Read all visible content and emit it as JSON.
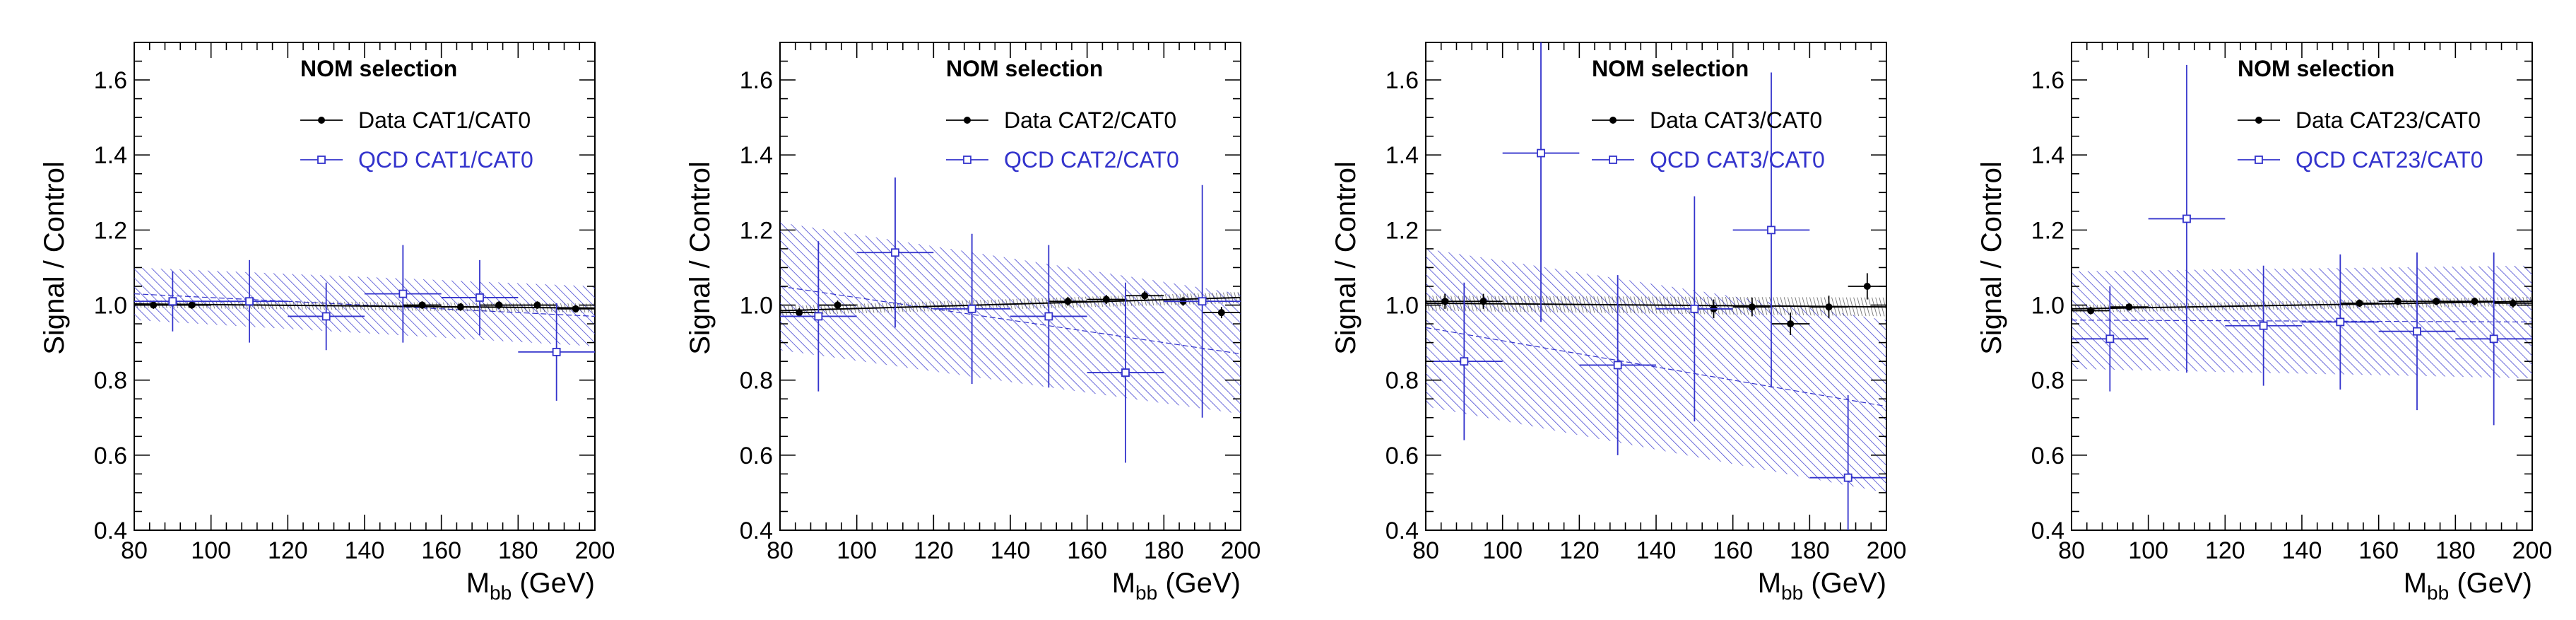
{
  "chart_data": [
    {
      "type": "scatter",
      "title": "NOM selection",
      "ylabel": "Signal / Control",
      "xlabel": "M",
      "xlabel_sub": "bb",
      "xlabel_unit": "(GeV)",
      "xlim": [
        80,
        200
      ],
      "ylim": [
        0.4,
        1.7
      ],
      "xticks": [
        "80",
        "100",
        "120",
        "140",
        "160",
        "180",
        "200"
      ],
      "yticks": [
        "0.4",
        "0.6",
        "0.8",
        "1.0",
        "1.2",
        "1.4",
        "1.6"
      ],
      "series": [
        {
          "name": "Data CAT1/CAT0",
          "color": "#000000",
          "marker": "filled-circle",
          "points": [
            {
              "x": 85,
              "y": 1.0,
              "xerr": 5,
              "yerr": 0.01
            },
            {
              "x": 95,
              "y": 1.0,
              "xerr": 5,
              "yerr": 0.01
            },
            {
              "x": 155,
              "y": 1.0,
              "xerr": 5,
              "yerr": 0.01
            },
            {
              "x": 165,
              "y": 0.995,
              "xerr": 5,
              "yerr": 0.01
            },
            {
              "x": 175,
              "y": 1.0,
              "xerr": 5,
              "yerr": 0.01
            },
            {
              "x": 185,
              "y": 1.0,
              "xerr": 5,
              "yerr": 0.01
            },
            {
              "x": 195,
              "y": 0.99,
              "xerr": 5,
              "yerr": 0.01
            }
          ],
          "fit": {
            "y_at_xmin": 1.003,
            "y_at_xmax": 0.992,
            "band_halfwidth_xmin": 0.01,
            "band_halfwidth_xmax": 0.012
          }
        },
        {
          "name": "QCD CAT1/CAT0",
          "color": "#3333cc",
          "marker": "open-square",
          "points": [
            {
              "x": 90,
              "y": 1.01,
              "xerr": 10,
              "yerr": 0.08
            },
            {
              "x": 110,
              "y": 1.01,
              "xerr": 10,
              "yerr": 0.11
            },
            {
              "x": 130,
              "y": 0.97,
              "xerr": 10,
              "yerr": 0.09
            },
            {
              "x": 150,
              "y": 1.03,
              "xerr": 10,
              "yerr": 0.13
            },
            {
              "x": 170,
              "y": 1.02,
              "xerr": 10,
              "yerr": 0.1
            },
            {
              "x": 190,
              "y": 0.875,
              "xerr": 10,
              "yerr": 0.13
            }
          ],
          "fit": {
            "y_at_xmin": 1.03,
            "y_at_xmax": 0.97,
            "band_halfwidth_xmin": 0.07,
            "band_halfwidth_xmax": 0.08
          }
        }
      ]
    },
    {
      "type": "scatter",
      "title": "NOM selection",
      "ylabel": "Signal / Control",
      "xlabel": "M",
      "xlabel_sub": "bb",
      "xlabel_unit": "(GeV)",
      "xlim": [
        80,
        200
      ],
      "ylim": [
        0.4,
        1.7
      ],
      "xticks": [
        "80",
        "100",
        "120",
        "140",
        "160",
        "180",
        "200"
      ],
      "yticks": [
        "0.4",
        "0.6",
        "0.8",
        "1.0",
        "1.2",
        "1.4",
        "1.6"
      ],
      "series": [
        {
          "name": "Data CAT2/CAT0",
          "color": "#000000",
          "marker": "filled-circle",
          "points": [
            {
              "x": 85,
              "y": 0.98,
              "xerr": 5,
              "yerr": 0.012
            },
            {
              "x": 95,
              "y": 1.0,
              "xerr": 5,
              "yerr": 0.012
            },
            {
              "x": 155,
              "y": 1.01,
              "xerr": 5,
              "yerr": 0.012
            },
            {
              "x": 165,
              "y": 1.015,
              "xerr": 5,
              "yerr": 0.012
            },
            {
              "x": 175,
              "y": 1.025,
              "xerr": 5,
              "yerr": 0.012
            },
            {
              "x": 185,
              "y": 1.01,
              "xerr": 5,
              "yerr": 0.012
            },
            {
              "x": 195,
              "y": 0.98,
              "xerr": 5,
              "yerr": 0.015
            }
          ],
          "fit": {
            "y_at_xmin": 0.985,
            "y_at_xmax": 1.02,
            "band_halfwidth_xmin": 0.012,
            "band_halfwidth_xmax": 0.015
          }
        },
        {
          "name": "QCD CAT2/CAT0",
          "color": "#3333cc",
          "marker": "open-square",
          "points": [
            {
              "x": 90,
              "y": 0.97,
              "xerr": 10,
              "yerr": 0.2
            },
            {
              "x": 110,
              "y": 1.14,
              "xerr": 10,
              "yerr": 0.2
            },
            {
              "x": 130,
              "y": 0.99,
              "xerr": 10,
              "yerr": 0.2
            },
            {
              "x": 150,
              "y": 0.97,
              "xerr": 10,
              "yerr": 0.19
            },
            {
              "x": 170,
              "y": 0.82,
              "xerr": 10,
              "yerr": 0.24
            },
            {
              "x": 190,
              "y": 1.01,
              "xerr": 10,
              "yerr": 0.31
            }
          ],
          "fit": {
            "y_at_xmin": 1.05,
            "y_at_xmax": 0.87,
            "band_halfwidth_xmin": 0.17,
            "band_halfwidth_xmax": 0.16
          }
        }
      ]
    },
    {
      "type": "scatter",
      "title": "NOM selection",
      "ylabel": "Signal / Control",
      "xlabel": "M",
      "xlabel_sub": "bb",
      "xlabel_unit": "(GeV)",
      "xlim": [
        80,
        200
      ],
      "ylim": [
        0.4,
        1.7
      ],
      "xticks": [
        "80",
        "100",
        "120",
        "140",
        "160",
        "180",
        "200"
      ],
      "yticks": [
        "0.4",
        "0.6",
        "0.8",
        "1.0",
        "1.2",
        "1.4",
        "1.6"
      ],
      "series": [
        {
          "name": "Data CAT3/CAT0",
          "color": "#000000",
          "marker": "filled-circle",
          "points": [
            {
              "x": 85,
              "y": 1.01,
              "xerr": 5,
              "yerr": 0.02
            },
            {
              "x": 95,
              "y": 1.01,
              "xerr": 5,
              "yerr": 0.02
            },
            {
              "x": 155,
              "y": 0.99,
              "xerr": 5,
              "yerr": 0.025
            },
            {
              "x": 165,
              "y": 0.995,
              "xerr": 5,
              "yerr": 0.025
            },
            {
              "x": 175,
              "y": 0.95,
              "xerr": 5,
              "yerr": 0.03
            },
            {
              "x": 185,
              "y": 0.995,
              "xerr": 5,
              "yerr": 0.03
            },
            {
              "x": 195,
              "y": 1.05,
              "xerr": 5,
              "yerr": 0.035
            }
          ],
          "fit": {
            "y_at_xmin": 1.005,
            "y_at_xmax": 0.995,
            "band_halfwidth_xmin": 0.02,
            "band_halfwidth_xmax": 0.025
          }
        },
        {
          "name": "QCD CAT3/CAT0",
          "color": "#3333cc",
          "marker": "open-square",
          "points": [
            {
              "x": 90,
              "y": 0.85,
              "xerr": 10,
              "yerr": 0.21
            },
            {
              "x": 110,
              "y": 1.405,
              "xerr": 10,
              "yerr": 0.45
            },
            {
              "x": 130,
              "y": 0.84,
              "xerr": 10,
              "yerr": 0.24
            },
            {
              "x": 150,
              "y": 0.99,
              "xerr": 10,
              "yerr": 0.3
            },
            {
              "x": 170,
              "y": 1.2,
              "xerr": 10,
              "yerr": 0.42
            },
            {
              "x": 190,
              "y": 0.54,
              "xerr": 10,
              "yerr": 0.22
            }
          ],
          "fit": {
            "y_at_xmin": 0.94,
            "y_at_xmax": 0.73,
            "band_halfwidth_xmin": 0.21,
            "band_halfwidth_xmax": 0.23
          }
        }
      ]
    },
    {
      "type": "scatter",
      "title": "NOM selection",
      "ylabel": "Signal / Control",
      "xlabel": "M",
      "xlabel_sub": "bb",
      "xlabel_unit": "(GeV)",
      "xlim": [
        80,
        200
      ],
      "ylim": [
        0.4,
        1.7
      ],
      "xticks": [
        "80",
        "100",
        "120",
        "140",
        "160",
        "180",
        "200"
      ],
      "yticks": [
        "0.4",
        "0.6",
        "0.8",
        "1.0",
        "1.2",
        "1.4",
        "1.6"
      ],
      "series": [
        {
          "name": "Data CAT23/CAT0",
          "color": "#000000",
          "marker": "filled-circle",
          "points": [
            {
              "x": 85,
              "y": 0.985,
              "xerr": 5,
              "yerr": 0.01
            },
            {
              "x": 95,
              "y": 0.995,
              "xerr": 5,
              "yerr": 0.01
            },
            {
              "x": 155,
              "y": 1.005,
              "xerr": 5,
              "yerr": 0.01
            },
            {
              "x": 165,
              "y": 1.01,
              "xerr": 5,
              "yerr": 0.01
            },
            {
              "x": 175,
              "y": 1.01,
              "xerr": 5,
              "yerr": 0.01
            },
            {
              "x": 185,
              "y": 1.01,
              "xerr": 5,
              "yerr": 0.01
            },
            {
              "x": 195,
              "y": 1.005,
              "xerr": 5,
              "yerr": 0.012
            }
          ],
          "fit": {
            "y_at_xmin": 0.99,
            "y_at_xmax": 1.01,
            "band_halfwidth_xmin": 0.01,
            "band_halfwidth_xmax": 0.012
          }
        },
        {
          "name": "QCD CAT23/CAT0",
          "color": "#3333cc",
          "marker": "open-square",
          "points": [
            {
              "x": 90,
              "y": 0.91,
              "xerr": 10,
              "yerr": 0.14
            },
            {
              "x": 110,
              "y": 1.23,
              "xerr": 10,
              "yerr": 0.41
            },
            {
              "x": 130,
              "y": 0.945,
              "xerr": 10,
              "yerr": 0.16
            },
            {
              "x": 150,
              "y": 0.955,
              "xerr": 10,
              "yerr": 0.18
            },
            {
              "x": 170,
              "y": 0.93,
              "xerr": 10,
              "yerr": 0.21
            },
            {
              "x": 190,
              "y": 0.91,
              "xerr": 10,
              "yerr": 0.23
            }
          ],
          "fit": {
            "y_at_xmin": 0.96,
            "y_at_xmax": 0.955,
            "band_halfwidth_xmin": 0.13,
            "band_halfwidth_xmax": 0.15
          }
        }
      ]
    }
  ]
}
